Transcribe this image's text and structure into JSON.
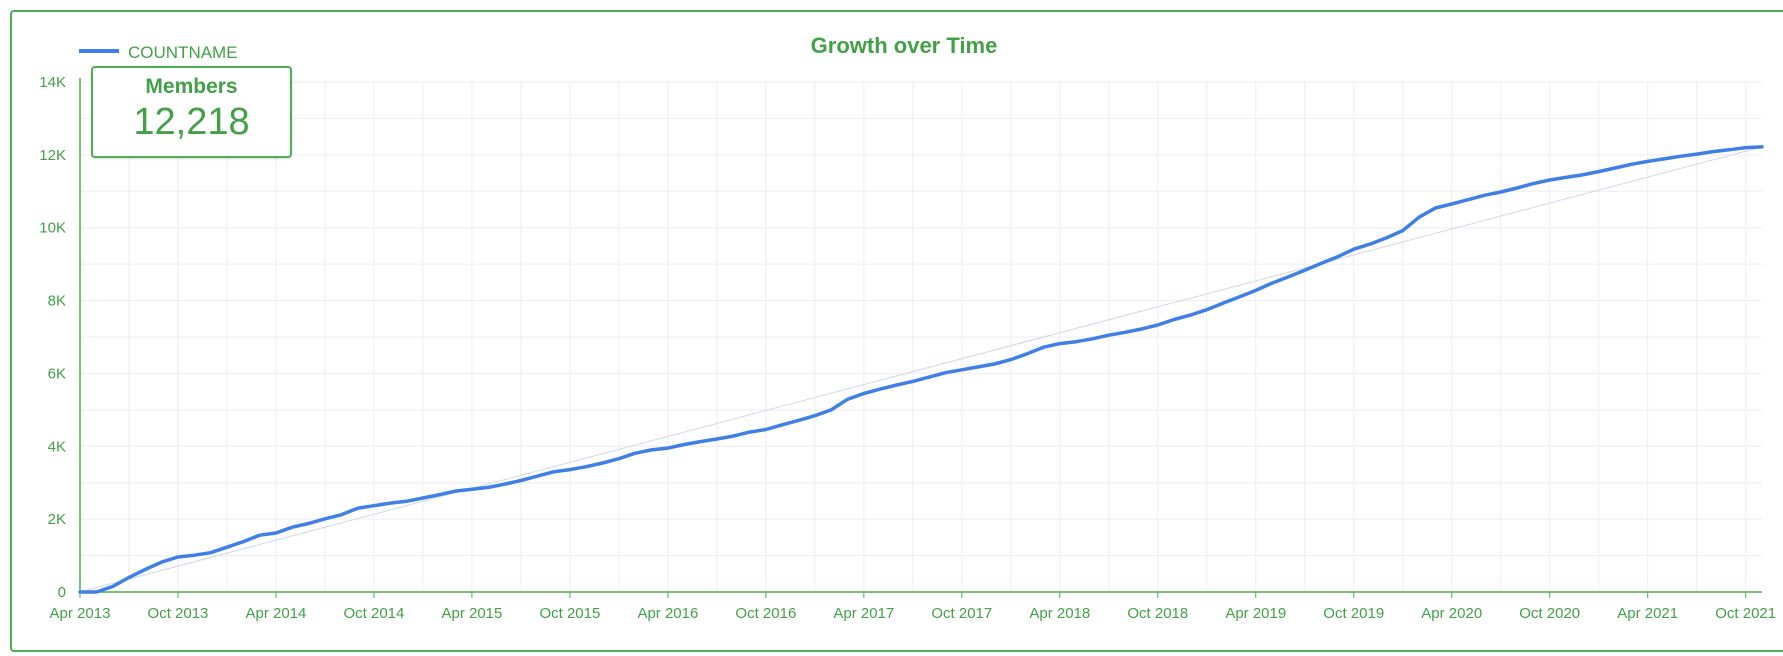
{
  "colors": {
    "accent": "#43a047",
    "border": "#4caf50",
    "line": "#3f7fe6",
    "grid": "#eeeeee"
  },
  "scorecard": {
    "label": "Members",
    "value": "12,218"
  },
  "chart_data": {
    "type": "line",
    "title": "Growth over Time",
    "xlabel": "",
    "ylabel": "",
    "legend": {
      "position": "top-left",
      "entries": [
        "COUNTNAME"
      ]
    },
    "grid": true,
    "x_ticks": [
      "Apr 2013",
      "Oct 2013",
      "Apr 2014",
      "Oct 2014",
      "Apr 2015",
      "Oct 2015",
      "Apr 2016",
      "Oct 2016",
      "Apr 2017",
      "Oct 2017",
      "Apr 2018",
      "Oct 2018",
      "Apr 2019",
      "Oct 2019",
      "Apr 2020",
      "Oct 2020",
      "Apr 2021",
      "Oct 2021"
    ],
    "y_ticks": [
      "0",
      "2K",
      "4K",
      "6K",
      "8K",
      "10K",
      "12K",
      "14K"
    ],
    "ylim": [
      0,
      14000
    ],
    "xlim": [
      "2013-04",
      "2021-11"
    ],
    "series": [
      {
        "name": "COUNTNAME",
        "x": [
          "2013-04",
          "2013-05",
          "2013-06",
          "2013-07",
          "2013-08",
          "2013-09",
          "2013-10",
          "2013-11",
          "2013-12",
          "2014-01",
          "2014-02",
          "2014-03",
          "2014-04",
          "2014-05",
          "2014-06",
          "2014-07",
          "2014-08",
          "2014-09",
          "2014-10",
          "2014-11",
          "2014-12",
          "2015-01",
          "2015-02",
          "2015-03",
          "2015-04",
          "2015-05",
          "2015-06",
          "2015-07",
          "2015-08",
          "2015-09",
          "2015-10",
          "2015-11",
          "2015-12",
          "2016-01",
          "2016-02",
          "2016-03",
          "2016-04",
          "2016-05",
          "2016-06",
          "2016-07",
          "2016-08",
          "2016-09",
          "2016-10",
          "2016-11",
          "2016-12",
          "2017-01",
          "2017-02",
          "2017-03",
          "2017-04",
          "2017-05",
          "2017-06",
          "2017-07",
          "2017-08",
          "2017-09",
          "2017-10",
          "2017-11",
          "2017-12",
          "2018-01",
          "2018-02",
          "2018-03",
          "2018-04",
          "2018-05",
          "2018-06",
          "2018-07",
          "2018-08",
          "2018-09",
          "2018-10",
          "2018-11",
          "2018-12",
          "2019-01",
          "2019-02",
          "2019-03",
          "2019-04",
          "2019-05",
          "2019-06",
          "2019-07",
          "2019-08",
          "2019-09",
          "2019-10",
          "2019-11",
          "2019-12",
          "2020-01",
          "2020-02",
          "2020-03",
          "2020-04",
          "2020-05",
          "2020-06",
          "2020-07",
          "2020-08",
          "2020-09",
          "2020-10",
          "2020-11",
          "2020-12",
          "2021-01",
          "2021-02",
          "2021-03",
          "2021-04",
          "2021-05",
          "2021-06",
          "2021-07",
          "2021-08",
          "2021-09",
          "2021-10",
          "2021-11"
        ],
        "values": [
          0,
          0,
          150,
          400,
          620,
          820,
          960,
          1010,
          1080,
          1230,
          1380,
          1560,
          1620,
          1780,
          1880,
          2010,
          2120,
          2300,
          2370,
          2440,
          2490,
          2580,
          2670,
          2770,
          2820,
          2870,
          2960,
          3060,
          3180,
          3300,
          3360,
          3440,
          3540,
          3660,
          3810,
          3900,
          3950,
          4050,
          4130,
          4200,
          4280,
          4390,
          4460,
          4590,
          4710,
          4840,
          5000,
          5290,
          5450,
          5570,
          5680,
          5780,
          5900,
          6020,
          6100,
          6180,
          6260,
          6380,
          6540,
          6720,
          6820,
          6870,
          6950,
          7050,
          7130,
          7220,
          7330,
          7480,
          7600,
          7750,
          7930,
          8100,
          8280,
          8480,
          8650,
          8830,
          9020,
          9200,
          9410,
          9550,
          9720,
          9920,
          10290,
          10540,
          10650,
          10770,
          10890,
          10980,
          11090,
          11210,
          11310,
          11380,
          11450,
          11540,
          11640,
          11740,
          11820,
          11890,
          11960,
          12020,
          12090,
          12140,
          12200,
          12218
        ]
      }
    ]
  }
}
